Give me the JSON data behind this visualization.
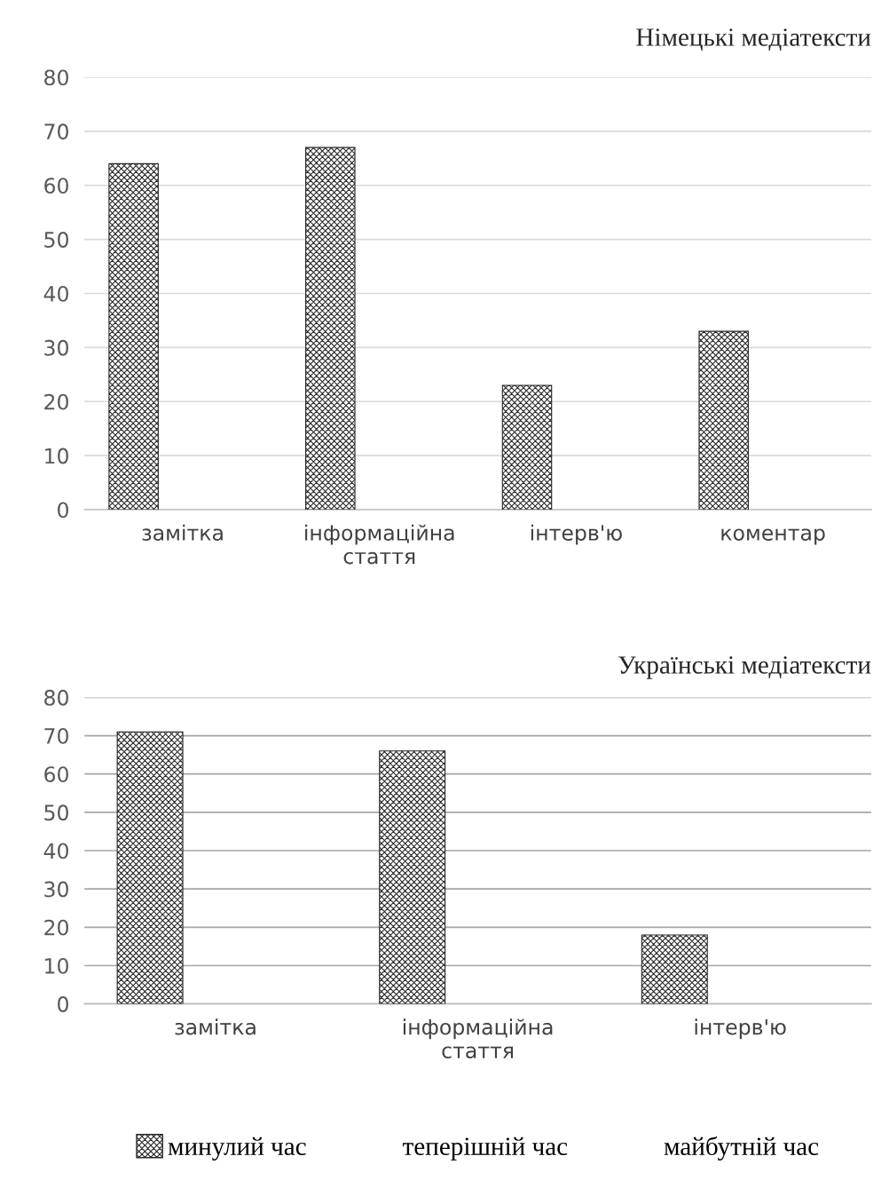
{
  "chart_data": [
    {
      "type": "bar",
      "title": "Німецькі медіатексти",
      "categories": [
        "замітка",
        "інформаційна стаття",
        "інтерв'ю",
        "коментар"
      ],
      "series": [
        {
          "color": "#262626",
          "values": [
            64,
            67,
            23,
            33
          ]
        },
        {
          "values": [
            null,
            null,
            null,
            null
          ]
        },
        {
          "values": [
            null,
            null,
            null,
            null
          ]
        }
      ],
      "ylim": [
        0,
        80
      ],
      "yticks": [
        0,
        10,
        20,
        30,
        40,
        50,
        60,
        70,
        80
      ],
      "grid": "y"
    },
    {
      "type": "bar",
      "title": "Українські медіатексти",
      "categories": [
        "замітка",
        "інформаційна стаття",
        "інтерв'ю"
      ],
      "series": [
        {
          "name": "минулий час",
          "color": "#262626",
          "values": [
            71,
            66,
            18
          ]
        },
        {
          "name": "теперішній час",
          "values": [
            null,
            null,
            null
          ]
        },
        {
          "name": "майбутній час",
          "values": [
            null,
            null,
            null
          ]
        }
      ],
      "ylim": [
        0,
        80
      ],
      "yticks": [
        0,
        10,
        20,
        30,
        40,
        50,
        60,
        70,
        80
      ],
      "grid": "y",
      "legend": "bottom"
    }
  ]
}
